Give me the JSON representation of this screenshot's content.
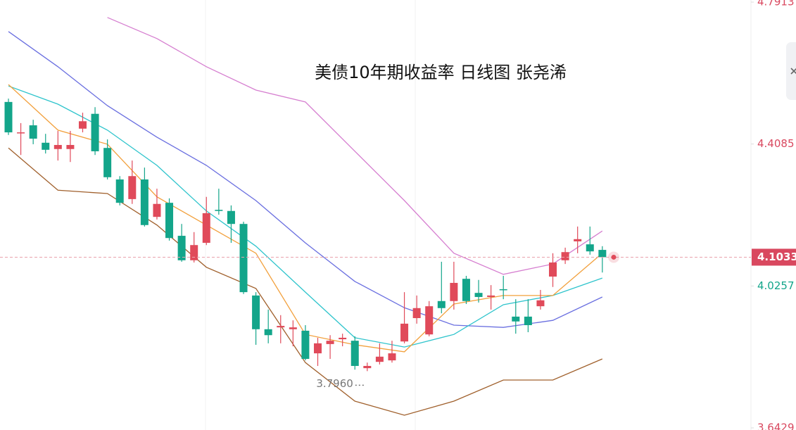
{
  "chart_data": {
    "type": "candlestick",
    "title": "美债10年期收益率 日线图  张尧浠",
    "ylim": [
      3.6429,
      4.7913
    ],
    "yticks": [
      4.7913,
      4.4085,
      4.0257,
      3.6429
    ],
    "ytick_colors": [
      "#d9485f",
      "#d9485f",
      "#13a58a",
      "#d9485f"
    ],
    "up_color": "#e04a5a",
    "down_color": "#13a58a",
    "last_price": 4.1033,
    "low_annotation": 3.796,
    "low_annotation_label": "3.7960",
    "open": [
      4.522,
      4.44,
      4.459,
      4.412,
      4.395,
      4.395,
      4.45,
      4.49,
      4.398,
      4.313,
      4.26,
      4.313,
      4.212,
      4.25,
      4.161,
      4.095,
      4.142,
      4.231,
      4.228,
      4.193,
      4.0,
      3.909,
      3.914,
      3.909,
      3.905,
      3.844,
      3.869,
      3.882,
      3.878,
      3.804,
      3.821,
      3.825,
      3.876,
      3.939,
      3.895,
      3.985,
      3.985,
      4.045,
      4.007,
      3.996,
      4.017,
      3.943,
      3.943,
      3.971,
      4.051,
      4.095,
      4.146,
      4.138,
      4.123
    ],
    "high": [
      4.531,
      4.465,
      4.474,
      4.436,
      4.444,
      4.444,
      4.493,
      4.508,
      4.421,
      4.322,
      4.364,
      4.345,
      4.288,
      4.262,
      4.193,
      4.171,
      4.266,
      4.288,
      4.243,
      4.199,
      4.009,
      3.962,
      3.947,
      3.933,
      3.92,
      3.886,
      3.893,
      3.897,
      3.89,
      3.819,
      3.871,
      3.878,
      4.009,
      4.0,
      3.985,
      4.091,
      4.091,
      4.053,
      4.042,
      4.028,
      4.053,
      3.99,
      3.99,
      4.015,
      4.114,
      4.129,
      4.186,
      4.186,
      4.133
    ],
    "low": [
      4.433,
      4.379,
      4.408,
      4.383,
      4.364,
      4.36,
      4.44,
      4.379,
      4.313,
      4.243,
      4.247,
      4.186,
      4.205,
      4.148,
      4.091,
      4.089,
      4.136,
      4.218,
      4.142,
      4.004,
      3.867,
      3.871,
      3.871,
      3.863,
      3.825,
      3.81,
      3.829,
      3.863,
      3.8,
      3.796,
      3.814,
      3.819,
      3.871,
      3.924,
      3.89,
      3.952,
      3.962,
      3.977,
      3.981,
      3.962,
      3.99,
      3.897,
      3.901,
      3.962,
      4.023,
      4.085,
      4.114,
      4.11,
      4.062
    ],
    "close": [
      4.44,
      4.44,
      4.423,
      4.393,
      4.406,
      4.406,
      4.47,
      4.389,
      4.319,
      4.25,
      4.322,
      4.19,
      4.247,
      4.155,
      4.095,
      4.136,
      4.222,
      4.228,
      4.193,
      4.009,
      3.909,
      3.893,
      3.918,
      3.914,
      3.829,
      3.871,
      3.878,
      3.886,
      3.81,
      3.81,
      3.835,
      3.844,
      3.924,
      3.966,
      3.971,
      3.966,
      4.034,
      3.985,
      3.996,
      4.0,
      4.015,
      3.93,
      3.92,
      3.987,
      4.089,
      4.117,
      4.152,
      4.119,
      4.1033
    ],
    "series": [
      {
        "color": "#d67fd0",
        "x": [
          8,
          12,
          16,
          20,
          24,
          28,
          32,
          36,
          40,
          44,
          48
        ],
        "values": [
          4.75,
          4.693,
          4.617,
          4.554,
          4.522,
          4.389,
          4.256,
          4.114,
          4.057,
          4.085,
          4.174
        ]
      },
      {
        "color": "#6a6fe0",
        "x": [
          0,
          4,
          8,
          12,
          16,
          20,
          24,
          28,
          32,
          36,
          40,
          44,
          48
        ],
        "values": [
          4.712,
          4.617,
          4.512,
          4.427,
          4.351,
          4.256,
          4.142,
          4.038,
          3.967,
          3.92,
          3.914,
          3.933,
          3.996
        ]
      },
      {
        "color": "#2ec4cc",
        "x": [
          0,
          4,
          8,
          12,
          16,
          20,
          24,
          28,
          32,
          36,
          40,
          44,
          48
        ],
        "values": [
          4.565,
          4.516,
          4.446,
          4.351,
          4.228,
          4.133,
          4.009,
          3.886,
          3.861,
          3.895,
          3.975,
          4.0,
          4.047
        ]
      },
      {
        "color": "#f2a03c",
        "x": [
          0,
          4,
          8,
          12,
          16,
          20,
          24,
          28,
          32,
          36,
          40,
          44,
          48
        ],
        "values": [
          4.569,
          4.446,
          4.408,
          4.266,
          4.19,
          4.114,
          3.895,
          3.867,
          3.848,
          3.977,
          4.0,
          4.0,
          4.114
        ]
      },
      {
        "color": "#a0602c",
        "x": [
          0,
          4,
          8,
          12,
          16,
          20,
          24,
          28,
          32,
          36,
          40,
          44,
          48
        ],
        "values": [
          4.398,
          4.284,
          4.275,
          4.19,
          4.076,
          4.019,
          3.819,
          3.715,
          3.677,
          3.715,
          3.772,
          3.772,
          3.829
        ]
      }
    ]
  }
}
